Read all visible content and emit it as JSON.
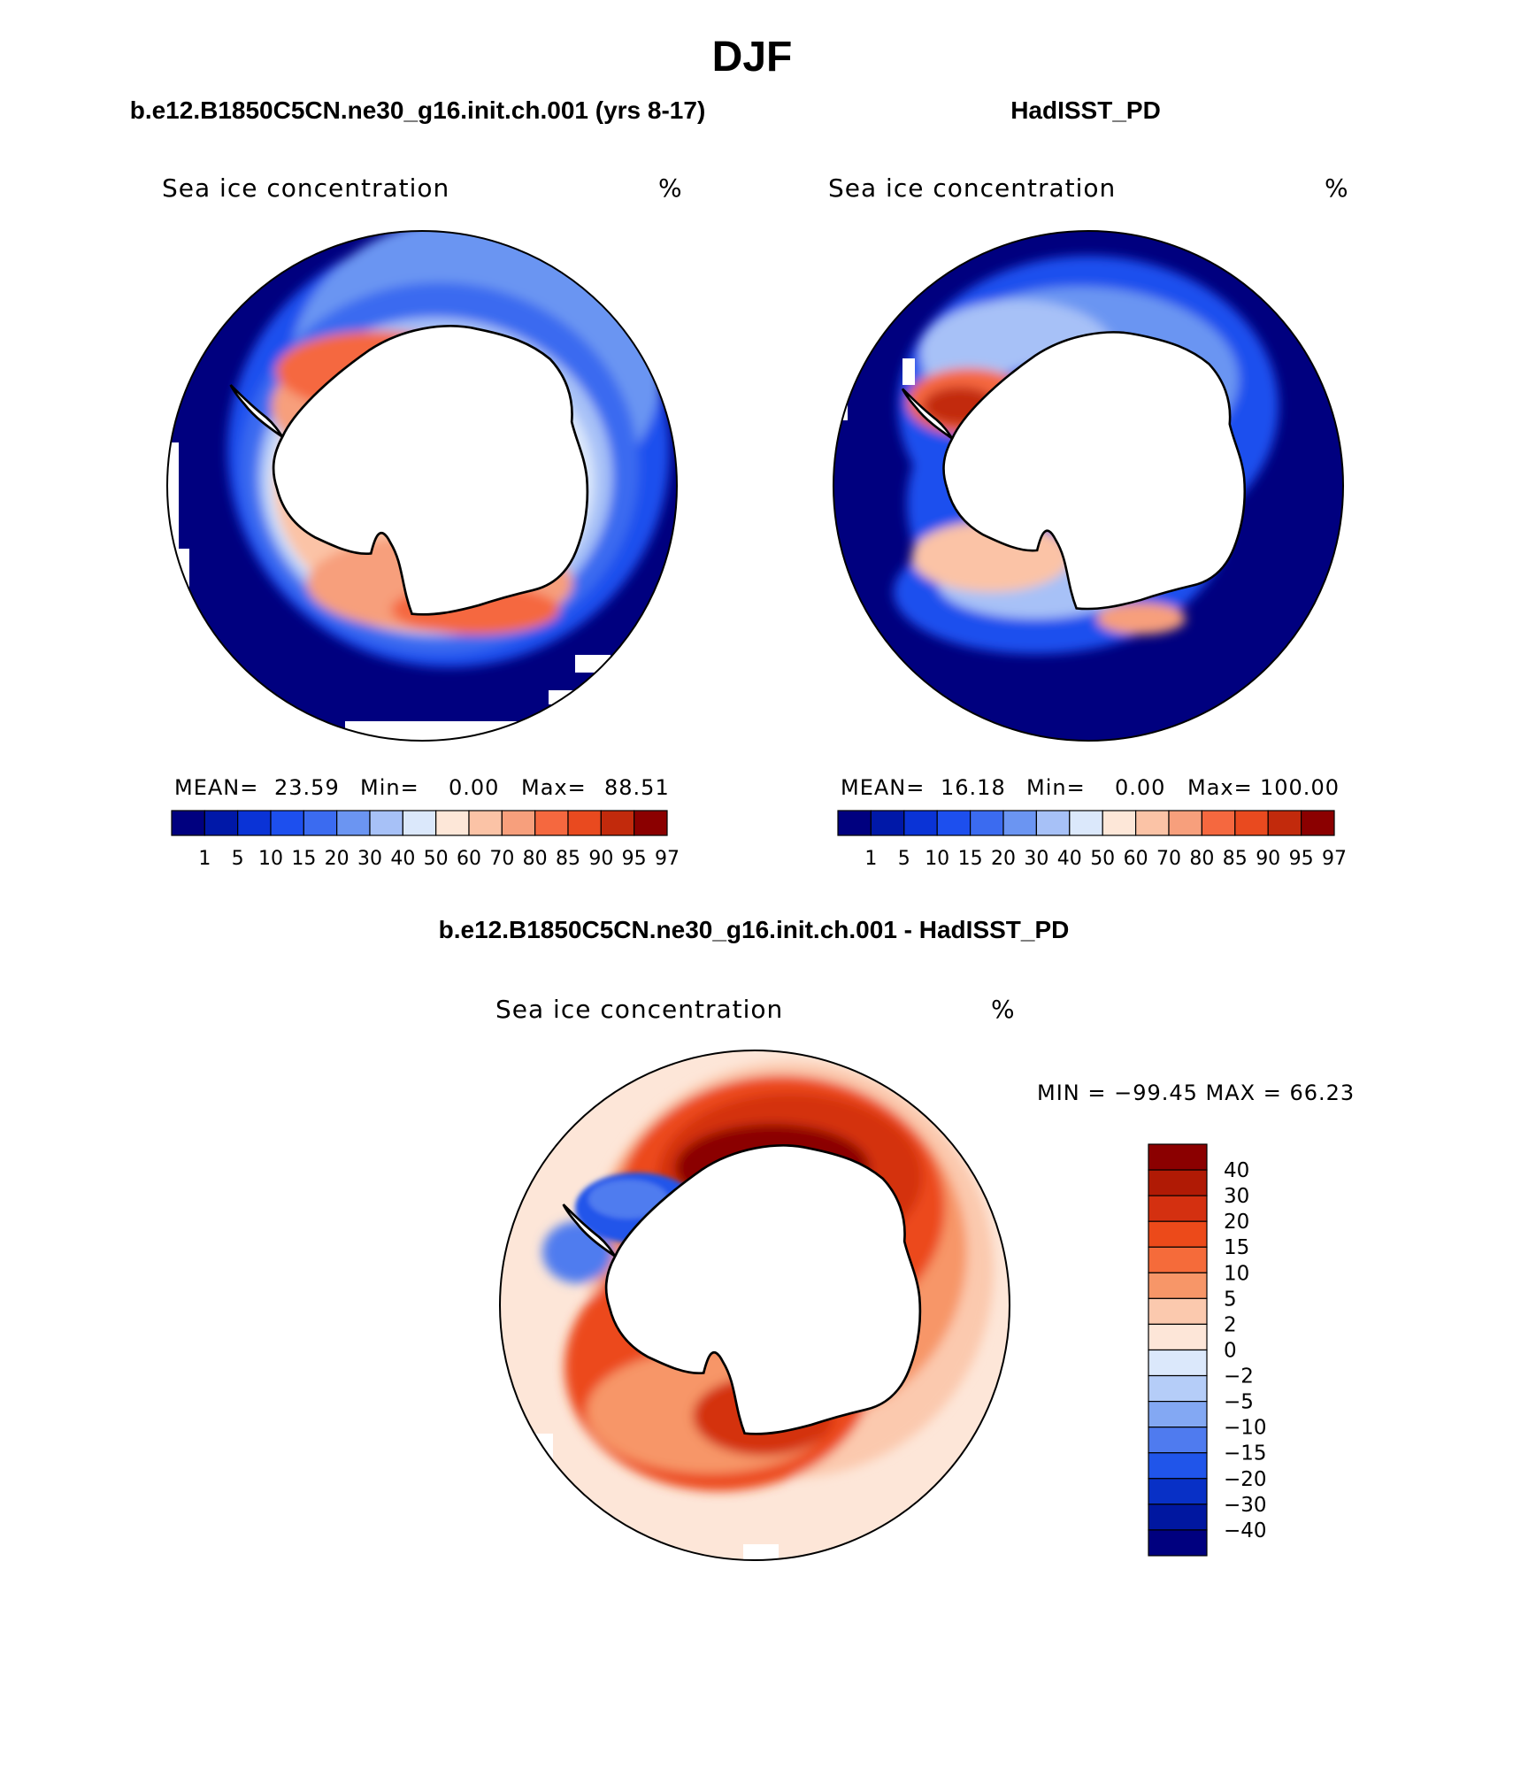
{
  "figure": {
    "season": "DJF",
    "left_panel_title": "b.e12.B1850C5CN.ne30_g16.init.ch.001 (yrs 8-17)",
    "right_panel_title": "HadISST_PD",
    "diff_panel_title": "b.e12.B1850C5CN.ne30_g16.init.ch.001 - HadISST_PD"
  },
  "panels": {
    "model": {
      "variable": "Sea ice concentration",
      "units": "%",
      "stats": {
        "mean_label": "MEAN=",
        "mean": "23.59",
        "min_label": "Min=",
        "min": "0.00",
        "max_label": "Max=",
        "max": "88.51"
      }
    },
    "obs": {
      "variable": "Sea ice concentration",
      "units": "%",
      "stats": {
        "mean_label": "MEAN=",
        "mean": "16.18",
        "min_label": "Min=",
        "min": "0.00",
        "max_label": "Max=",
        "max": "100.00"
      }
    },
    "diff": {
      "variable": "Sea ice concentration",
      "units": "%",
      "minmax": "MIN = −99.45 MAX =   66.23"
    }
  },
  "colorbars": {
    "abs_levels": [
      "1",
      "5",
      "10",
      "15",
      "20",
      "30",
      "40",
      "50",
      "60",
      "70",
      "80",
      "85",
      "90",
      "95",
      "97"
    ],
    "abs_colors": [
      "#00007f",
      "#0018a8",
      "#0a33d6",
      "#1d4fee",
      "#3b6bf0",
      "#6b95f2",
      "#a7c1f7",
      "#dbe8fb",
      "#fde7d8",
      "#fbc3a6",
      "#f79f7c",
      "#f5683f",
      "#e94a1f",
      "#c22a0c",
      "#8b0000"
    ],
    "diff_levels": [
      "40",
      "30",
      "20",
      "15",
      "10",
      "5",
      "2",
      "0",
      "−2",
      "−5",
      "−10",
      "−15",
      "−20",
      "−30",
      "−40"
    ],
    "diff_colors": [
      "#8b0000",
      "#b01a05",
      "#d43010",
      "#ec4a1a",
      "#f56b3a",
      "#f79668",
      "#fbc9ae",
      "#fde6d8",
      "#dbe8fb",
      "#b5cdf8",
      "#83a8f3",
      "#4f7bef",
      "#2055ea",
      "#0830c6",
      "#0017a0",
      "#00007f"
    ]
  },
  "regions": {
    "ocean_color": "#00007f",
    "land_color": "#ffffff"
  }
}
